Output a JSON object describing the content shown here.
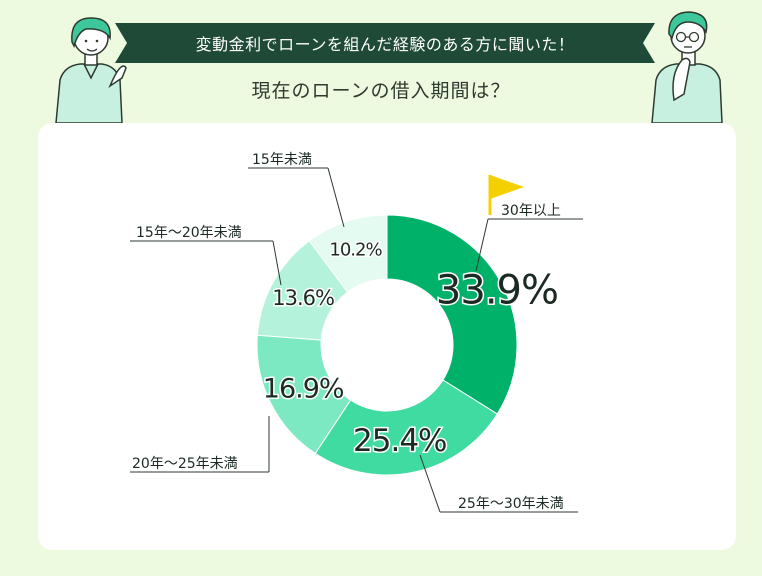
{
  "banner": {
    "text": "変動金利でローンを組んだ経験のある方に聞いた！"
  },
  "question": {
    "text": "現在のローンの借入期間は？"
  },
  "colors": {
    "background": "#eefadf",
    "banner": "#1f4a37",
    "accent": "#00b16a",
    "flag": "#f5d000"
  },
  "chart_data": {
    "type": "pie",
    "donut": true,
    "unit": "%",
    "slices": [
      {
        "label": "30年以上",
        "value": 33.9,
        "value_label": "33.9%",
        "color": "#00b16a"
      },
      {
        "label": "25年〜30年未満",
        "value": 25.4,
        "value_label": "25.4%",
        "color": "#3fdba0"
      },
      {
        "label": "20年〜25年未満",
        "value": 16.9,
        "value_label": "16.9%",
        "color": "#7de9c3"
      },
      {
        "label": "15年〜20年未満",
        "value": 13.6,
        "value_label": "13.6%",
        "color": "#b4f2dc"
      },
      {
        "label": "15年未満",
        "value": 10.2,
        "value_label": "10.2%",
        "color": "#e4fbf2"
      }
    ]
  }
}
